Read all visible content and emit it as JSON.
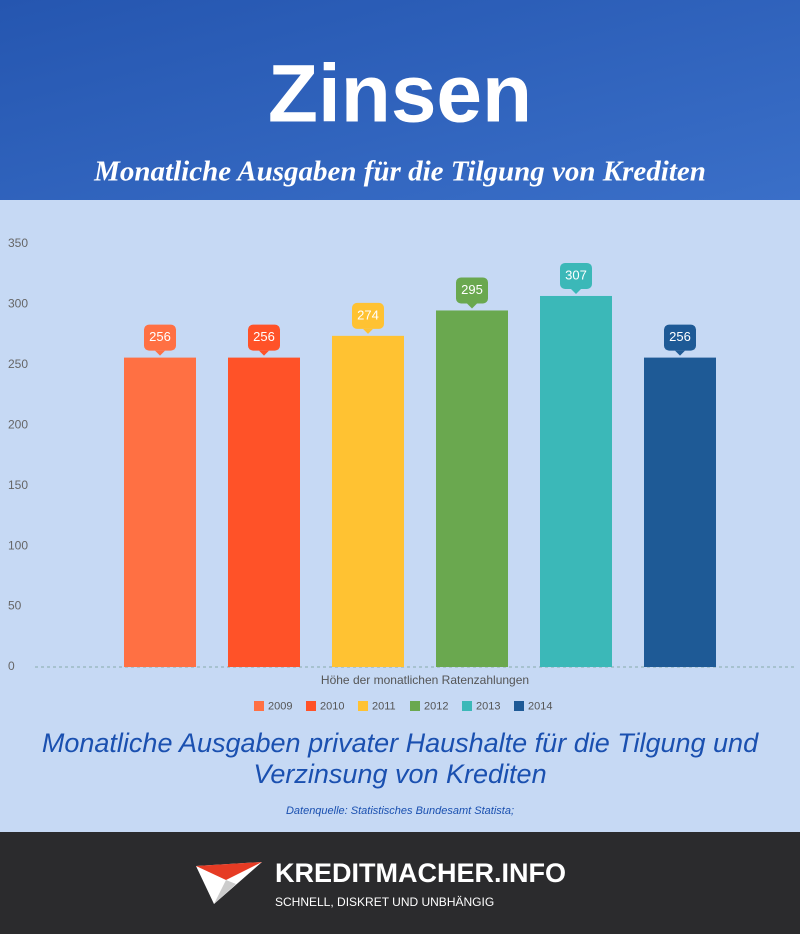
{
  "header": {
    "title": "Zinsen",
    "subtitle": "Monatliche Ausgaben für die Tilgung von Krediten"
  },
  "chart_data": {
    "type": "bar",
    "xlabel": "Höhe der monatlichen Ratenzahlungen",
    "series": [
      {
        "name": "2009",
        "color": "#ff7043",
        "values": [
          256
        ]
      },
      {
        "name": "2010",
        "color": "#ff5228",
        "values": [
          256
        ]
      },
      {
        "name": "2011",
        "color": "#ffc232",
        "values": [
          274
        ]
      },
      {
        "name": "2012",
        "color": "#6aa84f",
        "values": [
          295
        ]
      },
      {
        "name": "2013",
        "color": "#3bb8b8",
        "values": [
          307
        ]
      },
      {
        "name": "2014",
        "color": "#1e5a96",
        "values": [
          256
        ]
      }
    ],
    "ylim": [
      0,
      350
    ],
    "yticks": [
      0,
      50,
      100,
      150,
      200,
      250,
      300,
      350
    ],
    "grid": false
  },
  "caption": "Monatliche Ausgaben privater Haushalte für die Tilgung und Verzinsung von Krediten",
  "source": "Datenquelle: Statistisches Bundesamt Statista;",
  "footer": {
    "brand": "KREDITMACHER.INFO",
    "tagline": "SCHNELL, DISKRET UND UNBHÄNGIG"
  }
}
